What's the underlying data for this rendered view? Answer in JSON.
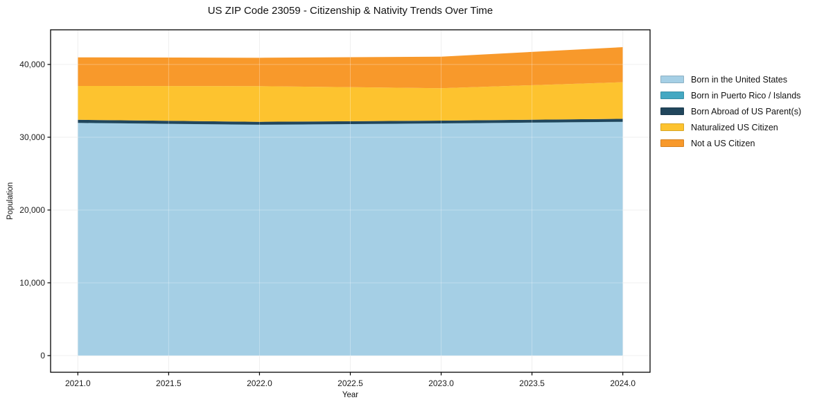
{
  "page": {
    "background": "#ffffff"
  },
  "chart_data": {
    "type": "area",
    "stacked": true,
    "title": "US ZIP Code 23059 - Citizenship & Nativity Trends Over Time",
    "xlabel": "Year",
    "ylabel": "Population",
    "x": [
      2021,
      2022,
      2023,
      2024
    ],
    "series": [
      {
        "name": "Born in the United States",
        "color": "#a5cfe5",
        "values": [
          31950,
          31700,
          31880,
          32100
        ]
      },
      {
        "name": "Born in Puerto Rico / Islands",
        "color": "#44a8c2",
        "values": [
          20,
          20,
          20,
          20
        ]
      },
      {
        "name": "Born Abroad of US Parent(s)",
        "color": "#21465c",
        "values": [
          430,
          400,
          380,
          410
        ]
      },
      {
        "name": "Naturalized US Citizen",
        "color": "#fdc32f",
        "values": [
          4650,
          4900,
          4460,
          5030
        ]
      },
      {
        "name": "Not a US Citizen",
        "color": "#f8992b",
        "values": [
          3930,
          3900,
          4330,
          4820
        ]
      }
    ],
    "xlim": [
      2020.85,
      2024.15
    ],
    "ylim": [
      -2290,
      44760
    ],
    "xticks": [
      2021.0,
      2021.5,
      2022.0,
      2022.5,
      2023.0,
      2023.5,
      2024.0
    ],
    "xtick_labels": [
      "2021.0",
      "2021.5",
      "2022.0",
      "2022.5",
      "2023.0",
      "2023.5",
      "2024.0"
    ],
    "yticks": [
      0,
      10000,
      20000,
      30000,
      40000
    ],
    "ytick_labels": [
      "0",
      "10,000",
      "20,000",
      "30,000",
      "40,000"
    ],
    "grid": true,
    "grid_color": "#e9e9e9",
    "spine_color": "#000000",
    "tick_label_color": "#1a1a1a",
    "legend_position": "right"
  }
}
